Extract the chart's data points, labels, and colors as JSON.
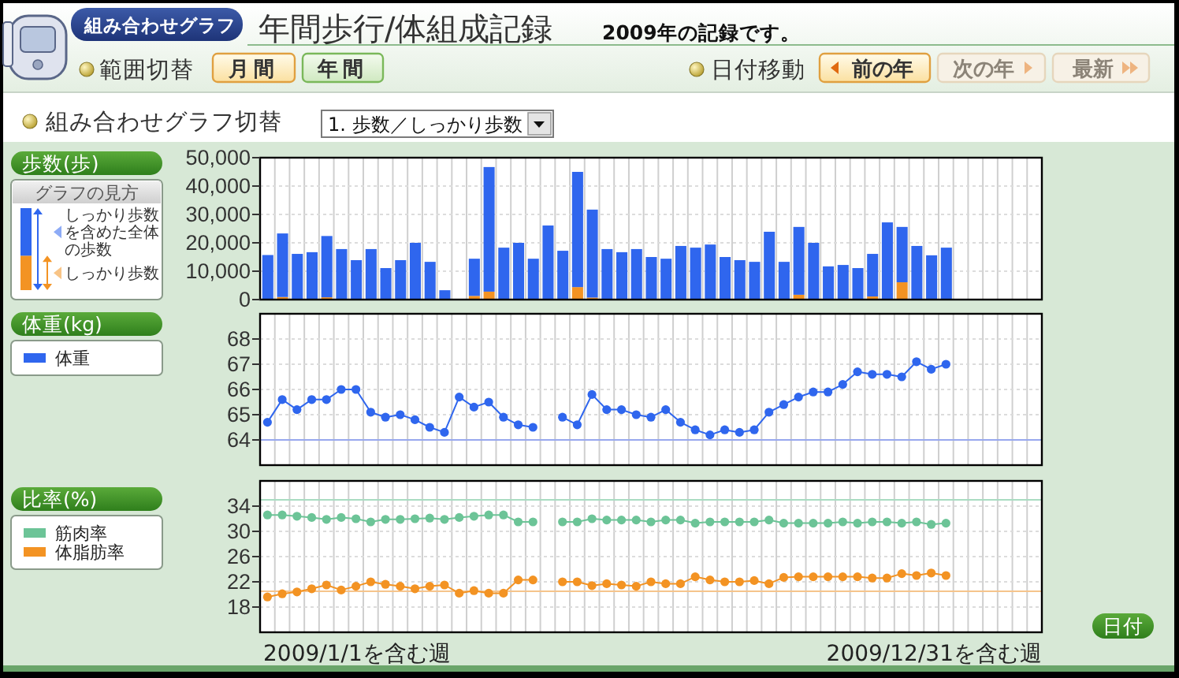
{
  "chart_data": [
    {
      "type": "other",
      "title": "年間歩行/体組成記録",
      "subtitle": "2009年の記録です。",
      "annotations": [
        "組み合わせグラフ",
        "範囲切替",
        "月間",
        "年間",
        "日付移動",
        "前の年",
        "次の年",
        "最新",
        "組み合わせグラフ切替",
        "1. 歩数／しっかり歩数"
      ]
    },
    {
      "type": "bar",
      "stacked": true,
      "ylabel": "歩数(歩)",
      "legend": "left",
      "legend_title": "グラフの見方",
      "grid": true,
      "tick_labels": "y",
      "categories": [
        null,
        null,
        null,
        null,
        null,
        null,
        null,
        null,
        null,
        null,
        null,
        null,
        null,
        null,
        null,
        null,
        null,
        null,
        null,
        null,
        null,
        null,
        null,
        null,
        null,
        null,
        null,
        null,
        null,
        null,
        null,
        null,
        null,
        null,
        null,
        null,
        null,
        null,
        null,
        null,
        null,
        null,
        null,
        null,
        null,
        null,
        null,
        null,
        null,
        null,
        null,
        null,
        null
      ],
      "ylim": [
        0,
        50000
      ],
      "yticks": [
        0,
        {
          "value": 10000,
          "label": "10,000"
        },
        {
          "value": 20000,
          "label": "20,000"
        },
        {
          "value": 30000,
          "label": "30,000"
        },
        {
          "value": 40000,
          "label": "40,000"
        },
        {
          "value": 50000,
          "label": "50,000"
        }
      ],
      "series": [
        {
          "name": "しっかり歩数",
          "color": "#f39323",
          "values": [
            0,
            900,
            0,
            0,
            800,
            0,
            0,
            0,
            0,
            0,
            0,
            0,
            0,
            null,
            1300,
            2800,
            0,
            0,
            0,
            0,
            0,
            4400,
            700,
            0,
            0,
            0,
            0,
            0,
            0,
            0,
            0,
            0,
            0,
            0,
            0,
            0,
            1700,
            0,
            0,
            0,
            0,
            1100,
            0,
            6100,
            0,
            0,
            0,
            null,
            null,
            null,
            null,
            null,
            null
          ]
        },
        {
          "name": "しっかり歩数を含めた全体の歩数",
          "color": "#2f66ee",
          "values": [
            15700,
            22400,
            16100,
            16700,
            21600,
            17800,
            13900,
            17800,
            11100,
            13900,
            20000,
            13300,
            3300,
            null,
            13100,
            43900,
            18300,
            20000,
            14400,
            26100,
            17200,
            40600,
            31000,
            17800,
            16700,
            17800,
            15000,
            14400,
            18900,
            18300,
            19400,
            15000,
            13900,
            13300,
            23900,
            13300,
            23900,
            20000,
            11700,
            12200,
            11100,
            15000,
            27200,
            19500,
            18900,
            15600,
            18300,
            null,
            null,
            null,
            null,
            null,
            null
          ]
        }
      ]
    },
    {
      "type": "line",
      "ylabel": "体重(kg)",
      "legend": "left",
      "grid": true,
      "tick_labels": "y",
      "marker": "circle",
      "categories": [
        null,
        null,
        null,
        null,
        null,
        null,
        null,
        null,
        null,
        null,
        null,
        null,
        null,
        null,
        null,
        null,
        null,
        null,
        null,
        null,
        null,
        null,
        null,
        null,
        null,
        null,
        null,
        null,
        null,
        null,
        null,
        null,
        null,
        null,
        null,
        null,
        null,
        null,
        null,
        null,
        null,
        null,
        null,
        null,
        null,
        null,
        null,
        null,
        null,
        null,
        null,
        null,
        null
      ],
      "ylim": [
        63,
        69
      ],
      "yticks": [
        64,
        65,
        66,
        67,
        68
      ],
      "ref_lines": [
        {
          "axis": "y",
          "value": 64,
          "color": "#98a8ee"
        }
      ],
      "series": [
        {
          "name": "体重",
          "color": "#2f66ee",
          "values": [
            64.7,
            65.6,
            65.2,
            65.6,
            65.6,
            66.0,
            66.0,
            65.1,
            64.9,
            65.0,
            64.8,
            64.5,
            64.3,
            65.7,
            65.3,
            65.5,
            64.9,
            64.6,
            64.5,
            null,
            64.9,
            64.6,
            65.8,
            65.2,
            65.2,
            65.0,
            64.9,
            65.2,
            64.7,
            64.4,
            64.2,
            64.4,
            64.3,
            64.4,
            65.1,
            65.4,
            65.7,
            65.9,
            65.9,
            66.2,
            66.7,
            66.6,
            66.6,
            66.5,
            67.1,
            66.8,
            67.0,
            null,
            null,
            null,
            null,
            null,
            null
          ]
        }
      ]
    },
    {
      "type": "line",
      "ylabel": "比率(%)",
      "xlabel": "日付",
      "legend": "left",
      "grid": true,
      "tick_labels": "y",
      "marker": "circle",
      "categories": [
        null,
        null,
        null,
        null,
        null,
        null,
        null,
        null,
        null,
        null,
        null,
        null,
        null,
        null,
        null,
        null,
        null,
        null,
        null,
        null,
        null,
        null,
        null,
        null,
        null,
        null,
        null,
        null,
        null,
        null,
        null,
        null,
        null,
        null,
        null,
        null,
        null,
        null,
        null,
        null,
        null,
        null,
        null,
        null,
        null,
        null,
        null,
        null,
        null,
        null,
        null,
        null,
        null
      ],
      "ylim": [
        14,
        38
      ],
      "yticks": [
        18,
        22,
        26,
        30,
        34
      ],
      "ref_lines": [
        {
          "axis": "y",
          "value": 35,
          "color": "#a9dcc2"
        },
        {
          "axis": "y",
          "value": 20.5,
          "color": "#f6c48c"
        }
      ],
      "annotations": [
        "2009/1/1を含む週",
        "2009/12/31を含む週"
      ],
      "series": [
        {
          "name": "筋肉率",
          "color": "#6cc497",
          "values": [
            32.6,
            32.6,
            32.4,
            32.2,
            31.9,
            32.2,
            32.0,
            31.5,
            31.9,
            31.9,
            32.0,
            32.1,
            31.9,
            32.2,
            32.4,
            32.6,
            32.6,
            31.5,
            31.5,
            null,
            31.5,
            31.5,
            32.0,
            31.8,
            31.8,
            31.8,
            31.5,
            31.8,
            31.8,
            31.3,
            31.5,
            31.5,
            31.5,
            31.5,
            31.8,
            31.3,
            31.3,
            31.3,
            31.3,
            31.5,
            31.3,
            31.5,
            31.5,
            31.3,
            31.5,
            31.1,
            31.3,
            null,
            null,
            null,
            null,
            null,
            null
          ]
        },
        {
          "name": "体脂肪率",
          "color": "#f39323",
          "values": [
            19.6,
            20.1,
            20.4,
            20.9,
            21.5,
            20.7,
            21.3,
            22.0,
            21.6,
            21.3,
            20.9,
            21.3,
            21.5,
            20.2,
            20.6,
            20.2,
            20.2,
            22.3,
            22.3,
            null,
            22.0,
            22.0,
            21.4,
            21.7,
            21.5,
            21.3,
            22.0,
            21.7,
            21.7,
            22.8,
            22.3,
            22.0,
            22.0,
            22.2,
            21.7,
            22.7,
            22.8,
            22.8,
            22.8,
            22.8,
            22.8,
            22.6,
            22.6,
            23.3,
            23.0,
            23.4,
            23.0,
            null,
            null,
            null,
            null,
            null,
            null
          ]
        }
      ]
    }
  ]
}
